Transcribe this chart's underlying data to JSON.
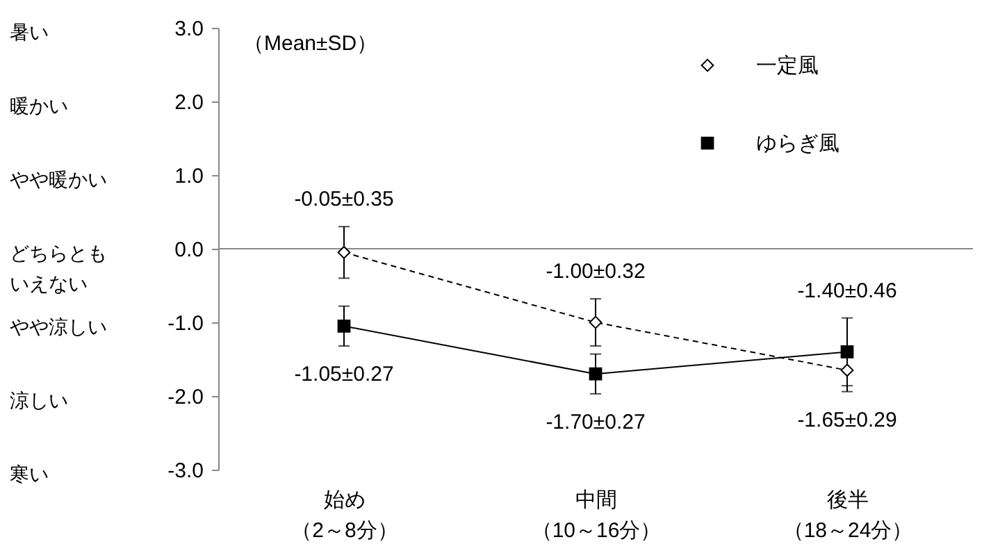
{
  "chart_data": {
    "type": "line",
    "categories": [
      "始め（2～8分）",
      "中間（10～16分）",
      "後半（18～24分）"
    ],
    "ylim": [
      -3,
      3
    ],
    "yticks": [
      {
        "value": 3,
        "label": "3.0"
      },
      {
        "value": 2,
        "label": "2.0"
      },
      {
        "value": 1,
        "label": "1.0"
      },
      {
        "value": 0,
        "label": "0.0"
      },
      {
        "value": -1,
        "label": "-1.0"
      },
      {
        "value": -2,
        "label": "-2.0"
      },
      {
        "value": -3,
        "label": "-3.0"
      }
    ],
    "annotations": [
      "（Mean±SD）",
      "暑い",
      "暖かい",
      "やや暖かい",
      "どちらともいえない",
      "やや涼しい",
      "涼しい",
      "寒い"
    ],
    "ref_lines": [
      {
        "axis": "y",
        "value": 0
      }
    ],
    "legend": "top right",
    "series": [
      {
        "name": "一定風",
        "color": "#000000",
        "values": [
          -0.05,
          -1.0,
          -1.65
        ],
        "errors": [
          0.35,
          0.32,
          0.29
        ],
        "value_labels": [
          "-0.05±0.35",
          "-1.00±0.32",
          "-1.65±0.29"
        ],
        "marker": "diamond",
        "line_style": "dashed"
      },
      {
        "name": "ゆらぎ風",
        "color": "#000000",
        "values": [
          -1.05,
          -1.7,
          -1.4
        ],
        "errors": [
          0.27,
          0.27,
          0.46
        ],
        "value_labels": [
          "-1.05±0.27",
          "-1.70±0.27",
          "-1.40±0.46"
        ],
        "marker": "square",
        "line_style": "solid"
      }
    ]
  }
}
